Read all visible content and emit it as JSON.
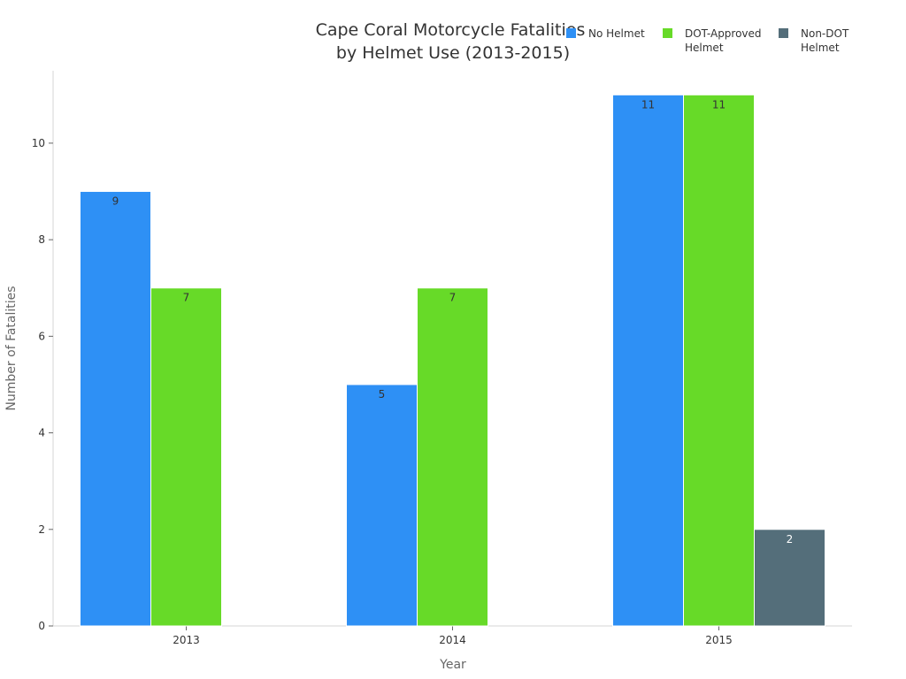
{
  "chart_data": {
    "type": "bar",
    "title": [
      "Cape Coral Motorcycle Fatalities",
      "by Helmet Use (2013-2015)"
    ],
    "xlabel": "Year",
    "ylabel": "Number of Fatalities",
    "categories": [
      "2013",
      "2014",
      "2015"
    ],
    "ylim": [
      0,
      11.5
    ],
    "yticks": [
      0,
      2,
      4,
      6,
      8,
      10
    ],
    "grid": false,
    "legend_position": "top-right",
    "series": [
      {
        "name": [
          "No Helmet"
        ],
        "color": "#2E90F5",
        "label_color": "#333333",
        "values": [
          9,
          5,
          11
        ]
      },
      {
        "name": [
          "DOT-Approved",
          "Helmet"
        ],
        "color": "#67DA28",
        "label_color": "#333333",
        "values": [
          7,
          7,
          11
        ]
      },
      {
        "name": [
          "Non-DOT",
          "Helmet"
        ],
        "color": "#546E7A",
        "label_color": "#ffffff",
        "values": [
          null,
          null,
          2
        ]
      }
    ]
  }
}
